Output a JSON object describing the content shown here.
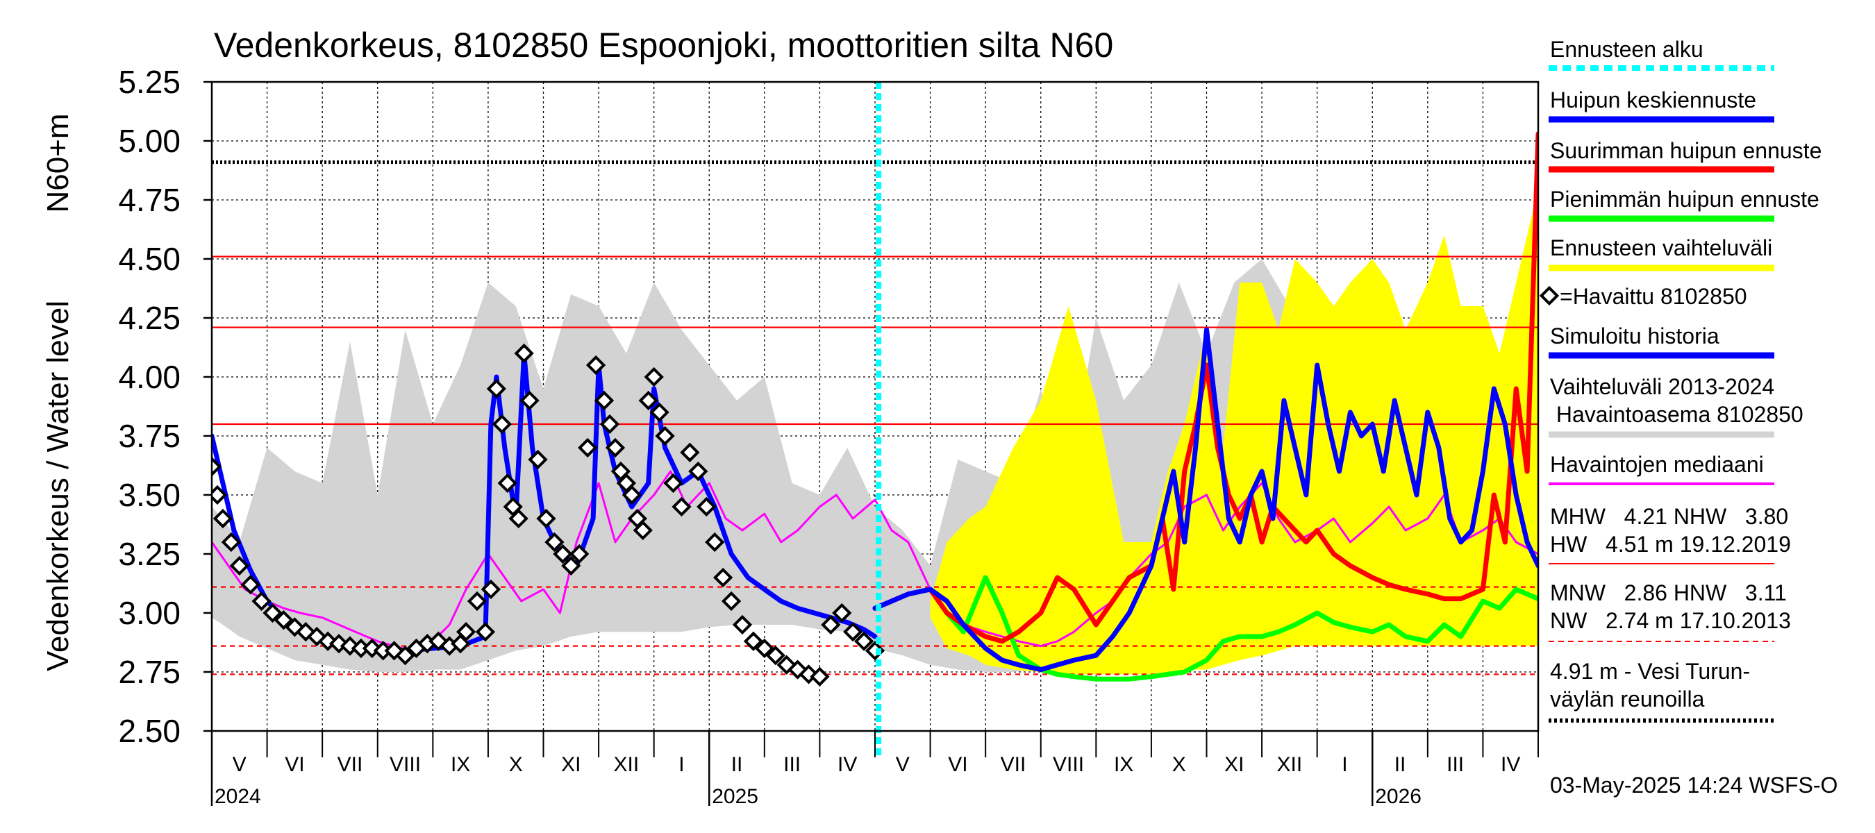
{
  "chart_data": {
    "type": "line",
    "title": "Vedenkorkeus, 8102850 Espoonjoki, moottoritien silta N60",
    "ylabel_outer": "Vedenkorkeus / Water level",
    "ylabel_inner": "N60+m",
    "ylim": [
      2.5,
      5.25
    ],
    "yticks": [
      2.5,
      2.75,
      3.0,
      3.25,
      3.5,
      3.75,
      4.0,
      4.25,
      4.5,
      4.75,
      5.0,
      5.25
    ],
    "ytick_labels": [
      "2.50",
      "2.75",
      "3.00",
      "3.25",
      "3.50",
      "3.75",
      "4.00",
      "4.25",
      "4.50",
      "4.75",
      "5.00",
      "5.25"
    ],
    "x_range": [
      "2024-04-01",
      "2026-05-31"
    ],
    "forecast_start": "2025-05-03",
    "years": [
      {
        "label": "2024",
        "month": 0
      },
      {
        "label": "2025",
        "month": 9
      },
      {
        "label": "2026",
        "month": 21
      }
    ],
    "month_labels": [
      "V",
      "VI",
      "VII",
      "VIII",
      "IX",
      "X",
      "XI",
      "XII",
      "I",
      "II",
      "III",
      "IV",
      "V",
      "VI",
      "VII",
      "VIII",
      "IX",
      "X",
      "XI",
      "XII",
      "I",
      "II",
      "III",
      "IV"
    ],
    "ref_lines": [
      {
        "name": "HW",
        "value": 4.51,
        "color": "#ff0000",
        "style": "solid"
      },
      {
        "name": "MHW",
        "value": 4.21,
        "color": "#ff0000",
        "style": "solid"
      },
      {
        "name": "NHW",
        "value": 3.8,
        "color": "#ff0000",
        "style": "solid"
      },
      {
        "name": "HNW",
        "value": 3.11,
        "color": "#ff0000",
        "style": "dashed"
      },
      {
        "name": "MNW",
        "value": 2.86,
        "color": "#ff0000",
        "style": "dashed"
      },
      {
        "name": "NW",
        "value": 2.74,
        "color": "#ff0000",
        "style": "dashed"
      },
      {
        "name": "Vesi Turunväylän reunoilla",
        "value": 4.91,
        "color": "#000000",
        "style": "dotted"
      }
    ],
    "series": [
      {
        "name": "Vaihteluväli 2013-2024 Havaintoasema 8102850",
        "kind": "band",
        "color": "#d3d3d3",
        "x": [
          0,
          0.2,
          0.5,
          1,
          1.5,
          2,
          2.5,
          3,
          3.5,
          4,
          4.5,
          5,
          5.5,
          6,
          6.5,
          7,
          7.5,
          8,
          8.5,
          9,
          9.5,
          10,
          10.5,
          11,
          11.5,
          12,
          12.5,
          13,
          13.5,
          14,
          14.5,
          15,
          15.5,
          16,
          16.5,
          17,
          17.5,
          18,
          18.5,
          19,
          19.5,
          20,
          20.5,
          21,
          21.5,
          22,
          22.5,
          23,
          23.5,
          24
        ],
        "low": [
          2.98,
          2.95,
          2.9,
          2.85,
          2.8,
          2.78,
          2.76,
          2.75,
          2.75,
          2.76,
          2.76,
          2.8,
          2.84,
          2.86,
          2.9,
          2.92,
          2.92,
          2.92,
          2.92,
          2.94,
          2.95,
          2.95,
          2.95,
          2.93,
          2.92,
          2.85,
          2.82,
          2.78,
          2.76,
          2.75,
          2.75,
          2.76,
          2.76,
          2.8,
          2.85,
          2.87,
          2.9,
          2.92,
          2.92,
          2.92,
          2.92,
          2.94,
          2.95,
          2.95,
          2.95,
          2.93,
          2.92,
          2.92,
          2.93,
          2.95
        ],
        "high": [
          3.45,
          3.4,
          3.3,
          3.7,
          3.6,
          3.55,
          4.15,
          3.5,
          4.2,
          3.8,
          4.05,
          4.4,
          4.3,
          3.95,
          4.35,
          4.3,
          4.1,
          4.4,
          4.2,
          4.05,
          3.9,
          4.0,
          3.55,
          3.5,
          3.7,
          3.45,
          3.35,
          3.2,
          3.65,
          3.6,
          3.55,
          3.95,
          3.55,
          4.25,
          3.9,
          4.05,
          4.4,
          4.1,
          4.4,
          4.5,
          4.3,
          4.05,
          4.35,
          4.3,
          4.1,
          4.4,
          4.2,
          4.05,
          3.9,
          3.8
        ]
      },
      {
        "name": "Ennusteen vaihteluväli",
        "kind": "band",
        "color": "#ffff00",
        "x": [
          13,
          13.3,
          13.7,
          14,
          14.5,
          15,
          15.5,
          16,
          16.5,
          17,
          17.3,
          17.6,
          18,
          18.3,
          18.6,
          19,
          19.3,
          19.6,
          20,
          20.3,
          20.6,
          21,
          21.3,
          21.6,
          22,
          22.3,
          22.6,
          23,
          23.3,
          23.6,
          24
        ],
        "low": [
          2.98,
          2.85,
          2.82,
          2.78,
          2.76,
          2.75,
          2.74,
          2.74,
          2.74,
          2.74,
          2.75,
          2.76,
          2.76,
          2.78,
          2.8,
          2.82,
          2.84,
          2.86,
          2.86,
          2.86,
          2.86,
          2.86,
          2.86,
          2.86,
          2.86,
          2.86,
          2.86,
          2.86,
          2.86,
          2.86,
          2.86
        ],
        "high": [
          3.05,
          3.3,
          3.4,
          3.45,
          3.7,
          3.9,
          4.3,
          3.9,
          3.3,
          3.3,
          3.6,
          3.8,
          4.2,
          3.7,
          4.4,
          4.4,
          4.2,
          4.5,
          4.4,
          4.3,
          4.4,
          4.5,
          4.4,
          4.2,
          4.4,
          4.6,
          4.3,
          4.3,
          4.1,
          4.4,
          4.8
        ]
      },
      {
        "name": "Havaittu 8102850",
        "kind": "markers",
        "color": "#000000",
        "x": [
          0,
          0.1,
          0.2,
          0.35,
          0.5,
          0.7,
          0.9,
          1.1,
          1.3,
          1.5,
          1.7,
          1.9,
          2.1,
          2.3,
          2.5,
          2.7,
          2.9,
          3.1,
          3.3,
          3.5,
          3.7,
          3.9,
          4.1,
          4.3,
          4.5,
          4.6,
          4.8,
          4.95,
          5.05,
          5.15,
          5.25,
          5.35,
          5.45,
          5.55,
          5.65,
          5.75,
          5.9,
          6.05,
          6.2,
          6.35,
          6.5,
          6.65,
          6.8,
          6.95,
          7.1,
          7.2,
          7.3,
          7.4,
          7.5,
          7.6,
          7.7,
          7.8,
          7.9,
          8.0,
          8.1,
          8.2,
          8.35,
          8.5,
          8.65,
          8.8,
          8.95,
          9.1,
          9.25,
          9.4,
          9.6,
          9.8,
          10.0,
          10.2,
          10.4,
          10.6,
          10.8,
          11.0,
          11.2,
          11.4,
          11.6,
          11.8,
          12.0
        ],
        "y": [
          3.62,
          3.5,
          3.4,
          3.3,
          3.2,
          3.12,
          3.05,
          3.0,
          2.97,
          2.94,
          2.92,
          2.9,
          2.88,
          2.87,
          2.86,
          2.85,
          2.85,
          2.84,
          2.84,
          2.82,
          2.85,
          2.87,
          2.88,
          2.86,
          2.87,
          2.92,
          3.05,
          2.92,
          3.1,
          3.95,
          3.8,
          3.55,
          3.45,
          3.4,
          4.1,
          3.9,
          3.65,
          3.4,
          3.3,
          3.25,
          3.2,
          3.25,
          3.7,
          4.05,
          3.9,
          3.8,
          3.7,
          3.6,
          3.55,
          3.5,
          3.4,
          3.35,
          3.9,
          4.0,
          3.85,
          3.75,
          3.55,
          3.45,
          3.68,
          3.6,
          3.45,
          3.3,
          3.15,
          3.05,
          2.95,
          2.88,
          2.85,
          2.82,
          2.78,
          2.76,
          2.74,
          2.73,
          2.95,
          3.0,
          2.92,
          2.88,
          2.84
        ]
      },
      {
        "name": "Simuloitu historia",
        "kind": "line",
        "color": "#0000ff",
        "x": [
          0,
          0.2,
          0.4,
          0.7,
          1,
          1.3,
          1.6,
          2,
          2.5,
          3,
          3.5,
          4,
          4.5,
          4.95,
          5.05,
          5.15,
          5.3,
          5.5,
          5.65,
          5.8,
          6.0,
          6.3,
          6.6,
          6.9,
          7.0,
          7.1,
          7.3,
          7.6,
          7.9,
          8.0,
          8.2,
          8.5,
          8.8,
          9.1,
          9.4,
          9.7,
          10.0,
          10.3,
          10.6,
          10.9,
          11.2,
          11.5,
          11.8,
          12.0
        ],
        "y": [
          3.75,
          3.55,
          3.35,
          3.18,
          3.05,
          2.98,
          2.94,
          2.9,
          2.86,
          2.84,
          2.84,
          2.85,
          2.86,
          2.9,
          3.8,
          4.0,
          3.7,
          3.4,
          4.1,
          3.7,
          3.4,
          3.25,
          3.2,
          3.4,
          4.05,
          3.8,
          3.6,
          3.45,
          3.55,
          3.95,
          3.7,
          3.55,
          3.6,
          3.45,
          3.25,
          3.15,
          3.1,
          3.05,
          3.02,
          3.0,
          2.98,
          2.96,
          2.93,
          2.9
        ]
      },
      {
        "name": "Havaintojen mediaani",
        "kind": "line",
        "color": "#ff00ff",
        "x": [
          0,
          0.3,
          0.6,
          1,
          1.3,
          1.6,
          2,
          2.3,
          2.6,
          3,
          3.3,
          3.6,
          4,
          4.3,
          4.6,
          5,
          5.3,
          5.6,
          6,
          6.3,
          6.6,
          7,
          7.3,
          7.6,
          8,
          8.3,
          8.6,
          9,
          9.3,
          9.6,
          10,
          10.3,
          10.6,
          11,
          11.3,
          11.6,
          12,
          12.3,
          12.6,
          13,
          13.3,
          13.6,
          14,
          14.3,
          14.6,
          15,
          15.3,
          15.6,
          16,
          16.3,
          16.6,
          17,
          17.3,
          17.6,
          18,
          18.3,
          18.6,
          19,
          19.3,
          19.6,
          20,
          20.3,
          20.6,
          21,
          21.3,
          21.6,
          22,
          22.3,
          22.6,
          23,
          23.3,
          23.6,
          24
        ],
        "y": [
          3.3,
          3.2,
          3.1,
          3.05,
          3.02,
          3.0,
          2.98,
          2.95,
          2.92,
          2.88,
          2.86,
          2.84,
          2.88,
          2.95,
          3.1,
          3.25,
          3.15,
          3.05,
          3.1,
          3.0,
          3.3,
          3.55,
          3.3,
          3.4,
          3.5,
          3.6,
          3.45,
          3.55,
          3.4,
          3.35,
          3.42,
          3.3,
          3.35,
          3.45,
          3.5,
          3.4,
          3.48,
          3.35,
          3.3,
          3.1,
          3.0,
          2.95,
          2.92,
          2.9,
          2.88,
          2.86,
          2.88,
          2.92,
          3.0,
          3.05,
          3.15,
          3.25,
          3.3,
          3.45,
          3.5,
          3.35,
          3.45,
          3.55,
          3.4,
          3.3,
          3.35,
          3.4,
          3.3,
          3.38,
          3.45,
          3.35,
          3.4,
          3.5,
          3.3,
          3.35,
          3.4,
          3.3,
          3.25
        ]
      },
      {
        "name": "Huipun keskiennuste",
        "kind": "line",
        "color": "#0000ff",
        "x": [
          12,
          12.3,
          12.6,
          13,
          13.3,
          13.6,
          14,
          14.3,
          14.6,
          15,
          15.3,
          15.6,
          16,
          16.3,
          16.6,
          17,
          17.2,
          17.4,
          17.6,
          17.8,
          18,
          18.2,
          18.4,
          18.6,
          18.8,
          19,
          19.2,
          19.4,
          19.6,
          19.8,
          20,
          20.2,
          20.4,
          20.6,
          20.8,
          21,
          21.2,
          21.4,
          21.6,
          21.8,
          22,
          22.2,
          22.4,
          22.6,
          22.8,
          23,
          23.2,
          23.4,
          23.6,
          23.8,
          24
        ],
        "y": [
          3.02,
          3.05,
          3.08,
          3.1,
          3.05,
          2.95,
          2.85,
          2.8,
          2.78,
          2.76,
          2.78,
          2.8,
          2.82,
          2.9,
          3.0,
          3.2,
          3.4,
          3.6,
          3.3,
          3.7,
          4.2,
          3.8,
          3.4,
          3.3,
          3.5,
          3.6,
          3.4,
          3.9,
          3.7,
          3.5,
          4.05,
          3.8,
          3.6,
          3.85,
          3.75,
          3.8,
          3.6,
          3.9,
          3.7,
          3.5,
          3.85,
          3.7,
          3.4,
          3.3,
          3.35,
          3.6,
          3.95,
          3.8,
          3.5,
          3.3,
          3.2
        ]
      },
      {
        "name": "Suurimman huipun ennuste",
        "kind": "line",
        "color": "#ff0000",
        "x": [
          12,
          12.3,
          12.6,
          13,
          13.3,
          13.6,
          14,
          14.3,
          14.6,
          15,
          15.3,
          15.6,
          16,
          16.3,
          16.6,
          17,
          17.2,
          17.4,
          17.6,
          17.8,
          18,
          18.2,
          18.4,
          18.6,
          18.8,
          19,
          19.2,
          19.4,
          19.6,
          19.8,
          20,
          20.3,
          20.6,
          21,
          21.3,
          21.6,
          22,
          22.3,
          22.6,
          23,
          23.2,
          23.4,
          23.6,
          23.8,
          24
        ],
        "y": [
          3.02,
          3.05,
          3.08,
          3.1,
          3.0,
          2.95,
          2.9,
          2.88,
          2.92,
          3.0,
          3.15,
          3.1,
          2.95,
          3.05,
          3.15,
          3.2,
          3.4,
          3.1,
          3.6,
          3.8,
          4.05,
          3.7,
          3.5,
          3.4,
          3.5,
          3.3,
          3.45,
          3.4,
          3.35,
          3.3,
          3.35,
          3.25,
          3.2,
          3.15,
          3.12,
          3.1,
          3.08,
          3.06,
          3.06,
          3.1,
          3.5,
          3.3,
          3.95,
          3.6,
          5.03
        ]
      },
      {
        "name": "Pienimmän huipun ennuste",
        "kind": "line",
        "color": "#00ff00",
        "x": [
          12,
          12.3,
          12.6,
          13,
          13.3,
          13.6,
          14,
          14.3,
          14.6,
          15,
          15.3,
          15.6,
          16,
          16.3,
          16.6,
          17,
          17.3,
          17.6,
          18,
          18.3,
          18.6,
          19,
          19.3,
          19.6,
          20,
          20.3,
          20.6,
          21,
          21.3,
          21.6,
          22,
          22.3,
          22.6,
          23,
          23.3,
          23.6,
          24
        ],
        "y": [
          3.02,
          3.05,
          3.08,
          3.1,
          3.0,
          2.92,
          3.15,
          3.0,
          2.82,
          2.76,
          2.74,
          2.73,
          2.72,
          2.72,
          2.72,
          2.73,
          2.74,
          2.75,
          2.8,
          2.88,
          2.9,
          2.9,
          2.92,
          2.95,
          3.0,
          2.96,
          2.94,
          2.92,
          2.95,
          2.9,
          2.88,
          2.95,
          2.9,
          3.05,
          3.02,
          3.1,
          3.06
        ]
      }
    ],
    "legend": [
      {
        "label": "Ennusteen alku",
        "color": "#00ffff",
        "style": "dotted"
      },
      {
        "label": "Huipun keskiennuste",
        "color": "#0000ff",
        "style": "solid"
      },
      {
        "label": "Suurimman huipun ennuste",
        "color": "#ff0000",
        "style": "solid"
      },
      {
        "label": "Pienimmän huipun ennuste",
        "color": "#00ff00",
        "style": "solid"
      },
      {
        "label": "Ennusteen vaihteluväli",
        "color": "#ffff00",
        "style": "solid"
      },
      {
        "label": "=Havaittu 8102850",
        "color": "#000000",
        "style": "marker"
      },
      {
        "label": "Simuloitu historia",
        "color": "#0000ff",
        "style": "solid"
      },
      {
        "label": "Vaihteluväli 2013-2024",
        "label2": " Havaintoasema 8102850",
        "color": "#d3d3d3",
        "style": "solid"
      },
      {
        "label": "Havaintojen mediaani",
        "color": "#ff00ff",
        "style": "thin"
      }
    ],
    "stats": {
      "row1": "MHW   4.21 NHW   3.80",
      "row2": "HW   4.51 m 19.12.2019",
      "row3": "MNW   2.86 HNW   3.11",
      "row4": "NW   2.74 m 17.10.2013",
      "note1": "4.91 m - Vesi Turun-",
      "note2": "väylän reunoilla"
    },
    "timestamp": "03-May-2025 14:24 WSFS-O"
  }
}
